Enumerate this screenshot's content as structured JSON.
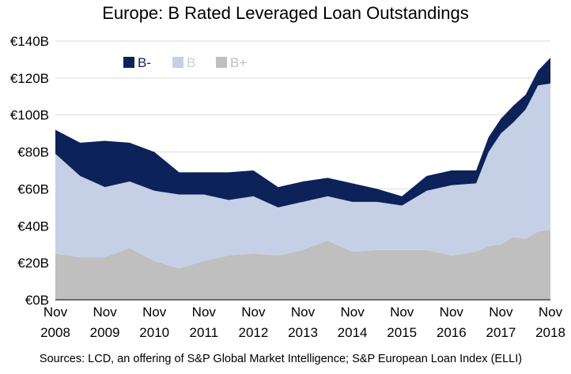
{
  "chart_data": {
    "type": "area",
    "stacked": true,
    "title": "Europe: B Rated Leveraged Loan Outstandings",
    "ylim": [
      0,
      140
    ],
    "y_ticks": [
      "€0B",
      "€20B",
      "€40B",
      "€60B",
      "€80B",
      "€100B",
      "€120B",
      "€140B"
    ],
    "y_unit": "€B",
    "x_ticks": [
      {
        "month": "Nov",
        "year": "2008"
      },
      {
        "month": "Nov",
        "year": "2009"
      },
      {
        "month": "Nov",
        "year": "2010"
      },
      {
        "month": "Nov",
        "year": "2011"
      },
      {
        "month": "Nov",
        "year": "2012"
      },
      {
        "month": "Nov",
        "year": "2013"
      },
      {
        "month": "Nov",
        "year": "2014"
      },
      {
        "month": "Nov",
        "year": "2015"
      },
      {
        "month": "Nov",
        "year": "2016"
      },
      {
        "month": "Nov",
        "year": "2017"
      },
      {
        "month": "Nov",
        "year": "2018"
      }
    ],
    "x": [
      "2008-11",
      "2009-05",
      "2009-11",
      "2010-05",
      "2010-11",
      "2011-05",
      "2011-11",
      "2012-05",
      "2012-11",
      "2013-05",
      "2013-11",
      "2014-05",
      "2014-11",
      "2015-05",
      "2015-11",
      "2016-05",
      "2016-11",
      "2017-05",
      "2017-08",
      "2017-11",
      "2018-02",
      "2018-05",
      "2018-08",
      "2018-11"
    ],
    "series": [
      {
        "name": "B+",
        "color": "#bfbfbf",
        "values": [
          25,
          23,
          23,
          28,
          21,
          17,
          21,
          24,
          25,
          24,
          27,
          32,
          26,
          27,
          27,
          27,
          24,
          26,
          29,
          30,
          34,
          33,
          37,
          38
        ]
      },
      {
        "name": "B",
        "color": "#c5d0e6",
        "values": [
          54,
          44,
          38,
          36,
          38,
          40,
          36,
          30,
          31,
          26,
          26,
          24,
          27,
          26,
          24,
          32,
          38,
          37,
          51,
          60,
          62,
          70,
          79,
          79
        ]
      },
      {
        "name": "B-",
        "color": "#0c2259",
        "values": [
          13,
          18,
          25,
          21,
          21,
          12,
          12,
          15,
          14,
          11,
          11,
          10,
          10,
          7,
          5,
          8,
          8,
          7,
          8,
          8,
          9,
          8,
          8,
          14
        ]
      }
    ],
    "legend": "top-left",
    "grid": true,
    "source": "Sources: LCD, an offering of S&P Global Market Intelligence; S&P European Loan Index (ELLI)"
  }
}
